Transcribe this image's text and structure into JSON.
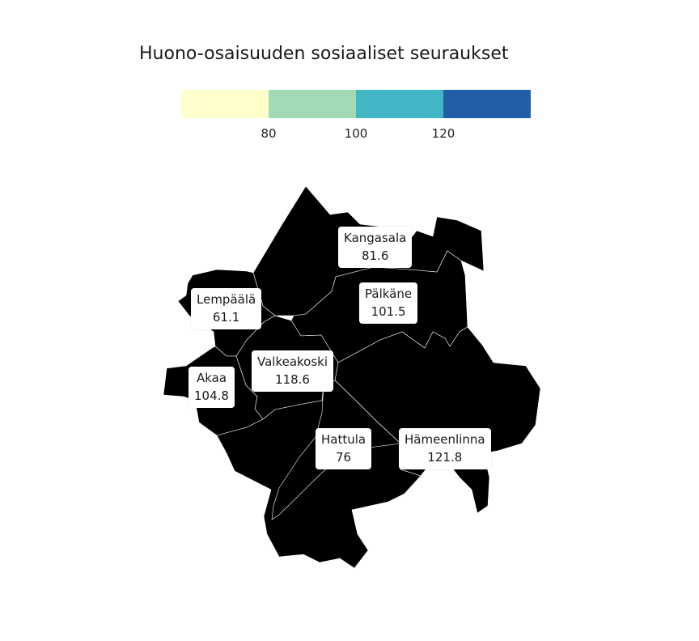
{
  "title": "Huono-osaisuuden sosiaaliset seuraukset",
  "legend": {
    "breaks": [
      80,
      100,
      120
    ],
    "tick_labels": [
      "80",
      "100",
      "120"
    ],
    "colors": [
      "#ffffcc",
      "#a1dab4",
      "#41b6c4",
      "#225ea8"
    ]
  },
  "regions": [
    {
      "name": "Kangasala",
      "value": 81.6,
      "value_label": "81.6",
      "color": "#a1dab4"
    },
    {
      "name": "Pälkäne",
      "value": 101.5,
      "value_label": "101.5",
      "color": "#41b6c4"
    },
    {
      "name": "Lempäälä",
      "value": 61.1,
      "value_label": "61.1",
      "color": "#ffffcc"
    },
    {
      "name": "Valkeakoski",
      "value": 118.6,
      "value_label": "118.6",
      "color": "#41b6c4"
    },
    {
      "name": "Akaa",
      "value": 104.8,
      "value_label": "104.8",
      "color": "#41b6c4"
    },
    {
      "name": "Hattula",
      "value": 76,
      "value_label": "76",
      "color": "#ffffcc"
    },
    {
      "name": "Hämeenlinna",
      "value": 121.8,
      "value_label": "121.8",
      "color": "#225ea8"
    }
  ]
}
